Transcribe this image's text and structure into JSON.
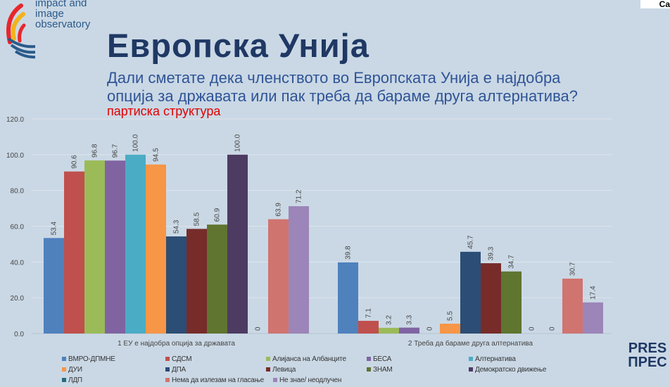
{
  "logo": {
    "lines": [
      "impact and",
      "image",
      "observatory"
    ]
  },
  "corner_logo": "Ca",
  "title": "Европска Унија",
  "question": "Дали сметате дека членството во Европската Унија е најдобра опција за државата или пак треба да бараме друга алтернатива?",
  "subtitle": "партиска структура",
  "press_logo": [
    "PRES",
    "ПРЕС"
  ],
  "chart_data": {
    "type": "bar",
    "title": "",
    "ylim": [
      0,
      120
    ],
    "yticks": [
      "0.0",
      "20.0",
      "40.0",
      "60.0",
      "80.0",
      "100.0",
      "120.0"
    ],
    "categories": [
      "1 ЕУ е најдобра опција за државата",
      "2 Треба да бараме друга алтернатива"
    ],
    "grid": true,
    "legend_position": "bottom",
    "series": [
      {
        "name": "ВМРО-ДПМНЕ",
        "color": "#4f81bd",
        "values": [
          53.4,
          39.8
        ]
      },
      {
        "name": "СДСМ",
        "color": "#c0504d",
        "values": [
          90.6,
          7.1
        ]
      },
      {
        "name": "Алијанса на Албанците",
        "color": "#9bbb59",
        "values": [
          96.8,
          3.2
        ]
      },
      {
        "name": "БЕСА",
        "color": "#8064a2",
        "values": [
          96.7,
          3.3
        ]
      },
      {
        "name": "Алтернатива",
        "color": "#4bacc6",
        "values": [
          100.0,
          0
        ]
      },
      {
        "name": "ДУИ",
        "color": "#f79646",
        "values": [
          94.5,
          5.5
        ]
      },
      {
        "name": "ДПА",
        "color": "#2c4d75",
        "values": [
          54.3,
          45.7
        ]
      },
      {
        "name": "Левица",
        "color": "#772c2a",
        "values": [
          58.5,
          39.3
        ]
      },
      {
        "name": "ЗНАМ",
        "color": "#5f7530",
        "values": [
          60.9,
          34.7
        ]
      },
      {
        "name": "Демократско движење",
        "color": "#4d3b62",
        "values": [
          100.0,
          0
        ]
      },
      {
        "name": "ЛДП",
        "color": "#276a7c",
        "values": [
          0,
          0
        ]
      },
      {
        "name": "Нема да излезам на гласање",
        "color": "#d07470",
        "values": [
          63.9,
          30.7
        ]
      },
      {
        "name": "Не знае/ неодлучен",
        "color": "#9c85b8",
        "values": [
          71.2,
          17.4
        ]
      }
    ]
  }
}
